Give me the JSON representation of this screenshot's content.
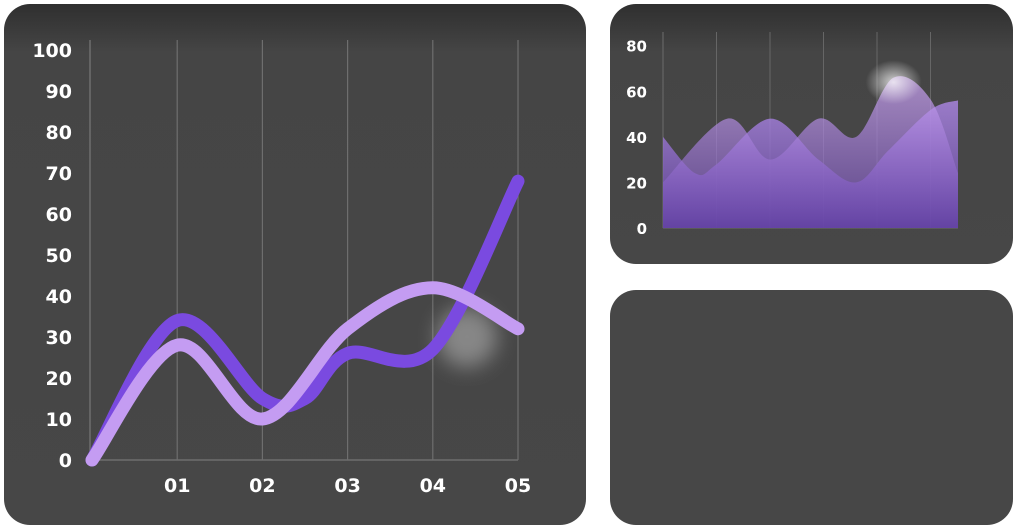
{
  "chart_data": [
    {
      "type": "line",
      "x_ticks": [
        "01",
        "02",
        "03",
        "04",
        "05"
      ],
      "y_ticks": [
        "0",
        "10",
        "20",
        "30",
        "40",
        "50",
        "60",
        "70",
        "80",
        "90",
        "100"
      ],
      "ylim": [
        0,
        100
      ],
      "xlim": [
        0,
        5
      ],
      "grid": "vertical",
      "series": [
        {
          "color": "#7a4ae0",
          "points": [
            [
              0,
              0
            ],
            [
              1,
              34
            ],
            [
              2,
              15
            ],
            [
              2.5,
              15
            ],
            [
              3,
              26
            ],
            [
              4,
              27
            ],
            [
              5,
              68
            ]
          ]
        },
        {
          "color": "#c49cf2",
          "points": [
            [
              0,
              0
            ],
            [
              1,
              28
            ],
            [
              2,
              10
            ],
            [
              3,
              32
            ],
            [
              4,
              42
            ],
            [
              5,
              32
            ]
          ]
        }
      ],
      "colors": {
        "gridline": "#6e6e6e",
        "text": "#ffffff"
      }
    },
    {
      "type": "area",
      "y_ticks": [
        "0",
        "20",
        "40",
        "60",
        "80"
      ],
      "ylim": [
        0,
        80
      ],
      "xlim": [
        0,
        5.5
      ],
      "grid": "vertical",
      "series": [
        {
          "color": "#b58af0",
          "points": [
            [
              0,
              40
            ],
            [
              0.6,
              24
            ],
            [
              1,
              28
            ],
            [
              2,
              48
            ],
            [
              2.9,
              30
            ],
            [
              3.6,
              20
            ],
            [
              4.2,
              34
            ],
            [
              5,
              52
            ],
            [
              5.5,
              56
            ]
          ]
        },
        {
          "color": "#c49cf2",
          "points": [
            [
              0,
              20
            ],
            [
              1.2,
              48
            ],
            [
              2,
              30
            ],
            [
              2.9,
              48
            ],
            [
              3.6,
              40
            ],
            [
              4.3,
              66
            ],
            [
              5,
              56
            ],
            [
              5.5,
              24
            ]
          ]
        }
      ],
      "colors": {
        "gridline": "#666666",
        "text": "#ffffff"
      }
    }
  ]
}
